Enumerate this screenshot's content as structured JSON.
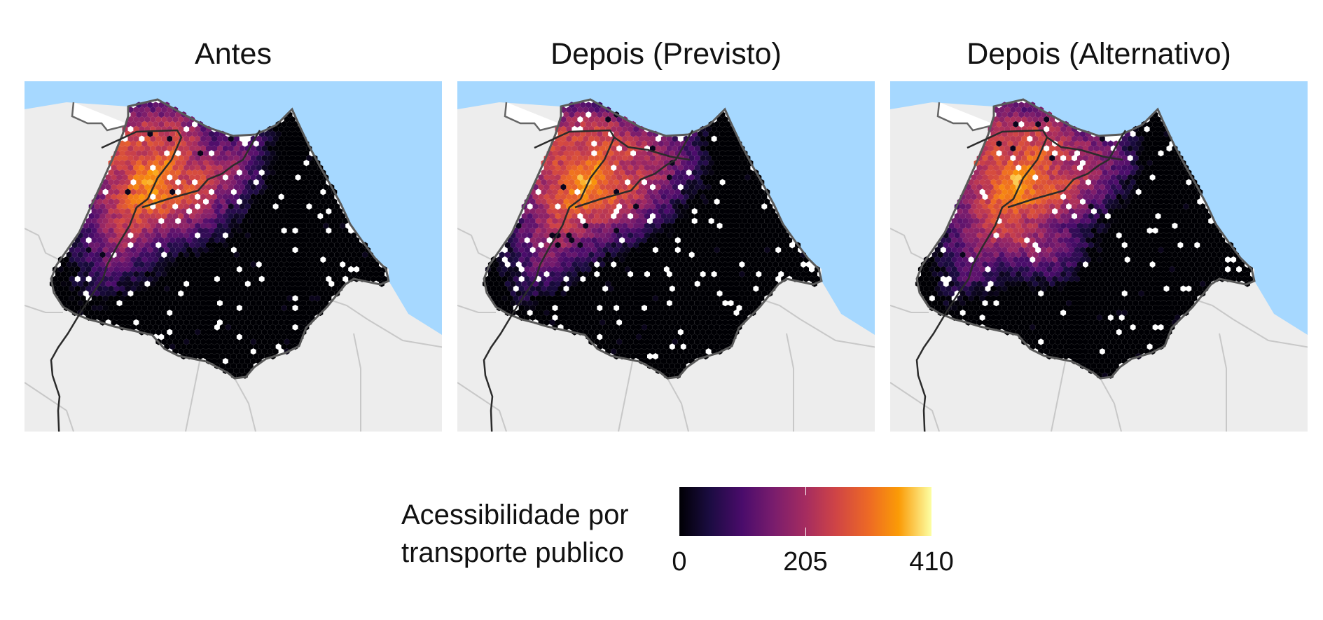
{
  "panels": [
    {
      "title": "Antes",
      "variant": "antes"
    },
    {
      "title": "Depois (Previsto)",
      "variant": "previsto"
    },
    {
      "title": "Depois (Alternativo)",
      "variant": "alternativo"
    }
  ],
  "legend": {
    "title_line1": "Acessibilidade por",
    "title_line2": "transporte publico",
    "ticks": [
      "0",
      "205",
      "410"
    ],
    "range": [
      0,
      410
    ],
    "palette": [
      "#000004",
      "#1b0c41",
      "#4a0c6b",
      "#781c6d",
      "#a52c60",
      "#cf4446",
      "#ed6925",
      "#fb9b06",
      "#fcffa4"
    ]
  },
  "colors": {
    "sea": "#a6d8ff",
    "land": "#ededed",
    "boundary": "#5a5a5a",
    "neighbor_boundary": "#c8c8c8",
    "rail_line": "#2b2b2b"
  }
}
